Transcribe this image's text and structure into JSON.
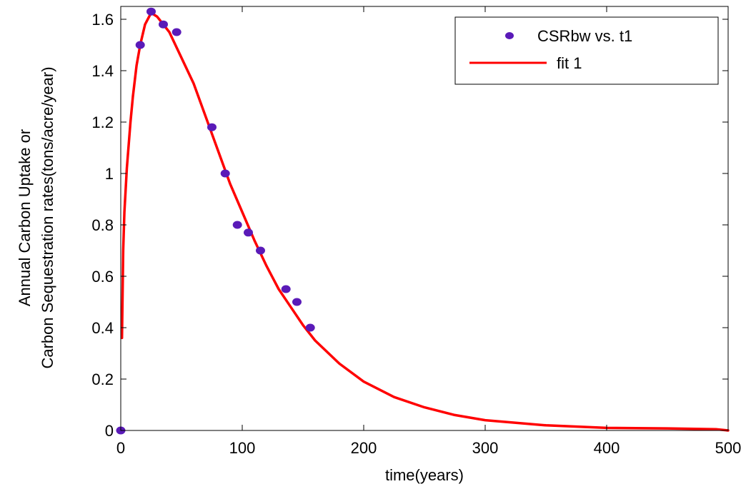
{
  "chart_data": {
    "type": "scatter",
    "xlabel": "time(years)",
    "ylabel_lines": [
      "Annual Carbon Uptake or",
      "Carbon Sequestration rates(tons/acre/year)"
    ],
    "xlim": [
      0,
      500
    ],
    "ylim": [
      0,
      1.65
    ],
    "x_ticks": [
      0,
      100,
      200,
      300,
      400,
      500
    ],
    "y_ticks": [
      0,
      0.2,
      0.4,
      0.6,
      0.8,
      1,
      1.2,
      1.4,
      1.6
    ],
    "x_tick_labels": [
      "0",
      "100",
      "200",
      "300",
      "400",
      "500"
    ],
    "y_tick_labels": [
      "0",
      "0.2",
      "0.4",
      "0.6",
      "0.8",
      "1",
      "1.2",
      "1.4",
      "1.6"
    ],
    "grid": false,
    "legend_position": "top-right",
    "series": [
      {
        "name": "CSRbw vs. t1",
        "kind": "markers",
        "color": "#5a1ab8",
        "points": [
          {
            "x": 0,
            "y": 0
          },
          {
            "x": 16,
            "y": 1.5
          },
          {
            "x": 25,
            "y": 1.63
          },
          {
            "x": 35,
            "y": 1.58
          },
          {
            "x": 46,
            "y": 1.55
          },
          {
            "x": 75,
            "y": 1.18
          },
          {
            "x": 86,
            "y": 1.0
          },
          {
            "x": 96,
            "y": 0.8
          },
          {
            "x": 105,
            "y": 0.77
          },
          {
            "x": 115,
            "y": 0.7
          },
          {
            "x": 136,
            "y": 0.55
          },
          {
            "x": 145,
            "y": 0.5
          },
          {
            "x": 156,
            "y": 0.4
          }
        ]
      },
      {
        "name": "fit 1",
        "kind": "line",
        "color": "#ff0000",
        "points": [
          {
            "x": 1,
            "y": 0.36
          },
          {
            "x": 2,
            "y": 0.7
          },
          {
            "x": 3,
            "y": 0.85
          },
          {
            "x": 5,
            "y": 1.02
          },
          {
            "x": 8,
            "y": 1.2
          },
          {
            "x": 10,
            "y": 1.3
          },
          {
            "x": 13,
            "y": 1.42
          },
          {
            "x": 16,
            "y": 1.5
          },
          {
            "x": 20,
            "y": 1.58
          },
          {
            "x": 25,
            "y": 1.625
          },
          {
            "x": 30,
            "y": 1.61
          },
          {
            "x": 35,
            "y": 1.58
          },
          {
            "x": 40,
            "y": 1.55
          },
          {
            "x": 50,
            "y": 1.45
          },
          {
            "x": 60,
            "y": 1.35
          },
          {
            "x": 70,
            "y": 1.22
          },
          {
            "x": 80,
            "y": 1.09
          },
          {
            "x": 90,
            "y": 0.96
          },
          {
            "x": 100,
            "y": 0.85
          },
          {
            "x": 110,
            "y": 0.74
          },
          {
            "x": 120,
            "y": 0.64
          },
          {
            "x": 130,
            "y": 0.55
          },
          {
            "x": 140,
            "y": 0.48
          },
          {
            "x": 150,
            "y": 0.41
          },
          {
            "x": 160,
            "y": 0.35
          },
          {
            "x": 180,
            "y": 0.26
          },
          {
            "x": 200,
            "y": 0.19
          },
          {
            "x": 225,
            "y": 0.13
          },
          {
            "x": 250,
            "y": 0.09
          },
          {
            "x": 275,
            "y": 0.06
          },
          {
            "x": 300,
            "y": 0.04
          },
          {
            "x": 350,
            "y": 0.02
          },
          {
            "x": 400,
            "y": 0.01
          },
          {
            "x": 450,
            "y": 0.008
          },
          {
            "x": 490,
            "y": 0.005
          },
          {
            "x": 500,
            "y": 0.0
          }
        ]
      }
    ]
  }
}
